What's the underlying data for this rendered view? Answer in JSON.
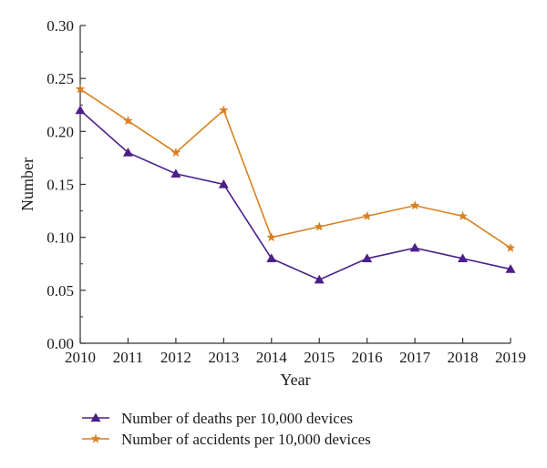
{
  "chart_data": {
    "type": "line",
    "xlabel": "Year",
    "ylabel": "Number",
    "x": [
      2010,
      2011,
      2012,
      2013,
      2014,
      2015,
      2016,
      2017,
      2018,
      2019
    ],
    "xlim": [
      2010,
      2019
    ],
    "ylim": [
      0,
      0.3
    ],
    "yticks": [
      "0.00",
      "0.05",
      "0.10",
      "0.15",
      "0.20",
      "0.25",
      "0.30"
    ],
    "grid": false,
    "legend_position": "bottom",
    "series": [
      {
        "name": "Number of deaths per 10,000 devices",
        "values": [
          0.22,
          0.18,
          0.16,
          0.15,
          0.08,
          0.06,
          0.08,
          0.09,
          0.08,
          0.07
        ],
        "color": "#4b1f8a",
        "marker": "triangle"
      },
      {
        "name": "Number of accidents per 10,000 devices",
        "values": [
          0.24,
          0.21,
          0.18,
          0.22,
          0.1,
          0.11,
          0.12,
          0.13,
          0.12,
          0.09
        ],
        "color": "#d9801f",
        "marker": "star"
      }
    ]
  }
}
